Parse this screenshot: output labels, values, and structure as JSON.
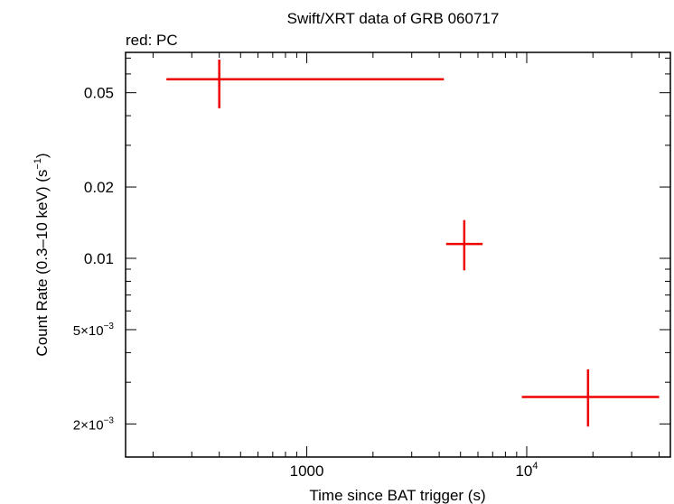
{
  "chart_data": {
    "type": "scatter",
    "title": "Swift/XRT data of GRB 060717",
    "subtitle": "red: PC",
    "xlabel": "Time since BAT trigger (s)",
    "ylabel": "Count Rate (0.3–10 keV) (s",
    "ylabel_sup": "−1",
    "ylabel_end": ")",
    "x_scale": "log",
    "y_scale": "log",
    "xlim": [
      150,
      45000
    ],
    "ylim": [
      0.00145,
      0.074
    ],
    "grid": false,
    "series": [
      {
        "color": "#ee0000",
        "points": [
          {
            "x": 400,
            "x_low": 230,
            "x_high": 4200,
            "y": 0.057,
            "y_low": 0.043,
            "y_high": 0.069
          },
          {
            "x": 5200,
            "x_low": 4300,
            "x_high": 6300,
            "y": 0.0115,
            "y_low": 0.0089,
            "y_high": 0.0145
          },
          {
            "x": 19000,
            "x_low": 9500,
            "x_high": 40000,
            "y": 0.0026,
            "y_low": 0.00195,
            "y_high": 0.0034
          }
        ]
      }
    ],
    "x_tick_labels": [
      {
        "value": 1000,
        "base": "1000",
        "exp": ""
      },
      {
        "value": 10000,
        "base": "10",
        "exp": "4"
      }
    ],
    "y_tick_labels": [
      {
        "value": 0.05,
        "base": "0.05",
        "exp": ""
      },
      {
        "value": 0.02,
        "base": "0.02",
        "exp": ""
      },
      {
        "value": 0.01,
        "base": "0.01",
        "exp": ""
      },
      {
        "value": 0.005,
        "base": "5×10",
        "exp": "−3"
      },
      {
        "value": 0.002,
        "base": "2×10",
        "exp": "−3"
      }
    ]
  }
}
